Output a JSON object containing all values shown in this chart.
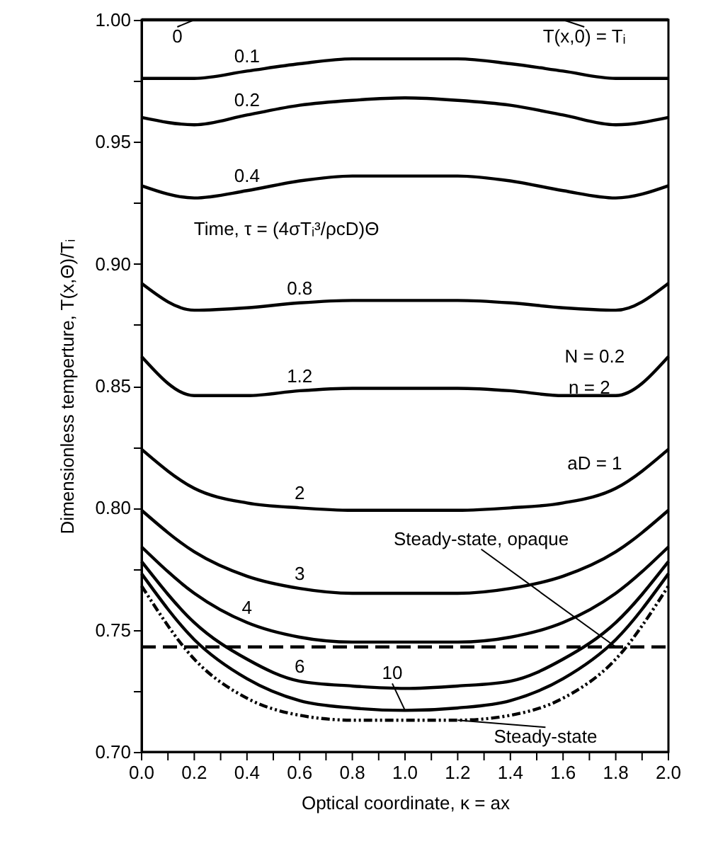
{
  "chart_data": {
    "type": "line",
    "xlabel": "Optical coordinate, κ = ax",
    "ylabel": "Dimensionless temperture, T(x,Θ)/Tᵢ",
    "x": [
      0.0,
      0.2,
      0.4,
      0.6,
      0.8,
      1.0,
      1.2,
      1.4,
      1.6,
      1.8,
      2.0
    ],
    "series": [
      {
        "color": "#000000",
        "line_style": "solid",
        "values": [
          1.0,
          1.0,
          1.0,
          1.0,
          1.0,
          1.0,
          1.0,
          1.0,
          1.0,
          1.0,
          1.0
        ]
      },
      {
        "color": "#000000",
        "line_style": "solid",
        "values": [
          0.976,
          0.976,
          0.979,
          0.982,
          0.984,
          0.984,
          0.984,
          0.982,
          0.979,
          0.976,
          0.976
        ]
      },
      {
        "color": "#000000",
        "line_style": "solid",
        "values": [
          0.96,
          0.957,
          0.961,
          0.965,
          0.967,
          0.968,
          0.967,
          0.965,
          0.961,
          0.957,
          0.96
        ]
      },
      {
        "color": "#000000",
        "line_style": "solid",
        "values": [
          0.932,
          0.927,
          0.93,
          0.934,
          0.936,
          0.936,
          0.936,
          0.934,
          0.93,
          0.927,
          0.932
        ]
      },
      {
        "color": "#000000",
        "line_style": "solid",
        "values": [
          0.892,
          0.881,
          0.882,
          0.884,
          0.885,
          0.885,
          0.885,
          0.884,
          0.882,
          0.881,
          0.892
        ]
      },
      {
        "color": "#000000",
        "line_style": "solid",
        "values": [
          0.862,
          0.846,
          0.846,
          0.848,
          0.849,
          0.849,
          0.849,
          0.848,
          0.846,
          0.846,
          0.862
        ]
      },
      {
        "color": "#000000",
        "line_style": "solid",
        "values": [
          0.824,
          0.808,
          0.802,
          0.8,
          0.799,
          0.799,
          0.799,
          0.8,
          0.802,
          0.808,
          0.824
        ]
      },
      {
        "color": "#000000",
        "line_style": "solid",
        "values": [
          0.799,
          0.782,
          0.772,
          0.767,
          0.765,
          0.765,
          0.765,
          0.767,
          0.772,
          0.782,
          0.799
        ]
      },
      {
        "color": "#000000",
        "line_style": "solid",
        "values": [
          0.784,
          0.765,
          0.753,
          0.747,
          0.745,
          0.745,
          0.745,
          0.747,
          0.753,
          0.765,
          0.784
        ]
      },
      {
        "color": "#000000",
        "line_style": "solid",
        "values": [
          0.778,
          0.753,
          0.738,
          0.729,
          0.727,
          0.726,
          0.727,
          0.729,
          0.738,
          0.753,
          0.778
        ]
      },
      {
        "color": "#000000",
        "line_style": "solid",
        "values": [
          0.773,
          0.746,
          0.73,
          0.721,
          0.718,
          0.717,
          0.718,
          0.721,
          0.73,
          0.746,
          0.773
        ]
      },
      {
        "color": "#000000",
        "line_style": "dotted",
        "values": [
          0.768,
          0.738,
          0.722,
          0.715,
          0.713,
          0.713,
          0.713,
          0.715,
          0.722,
          0.738,
          0.768
        ]
      },
      {
        "color": "#000000",
        "line_style": "dashed",
        "values": [
          0.743,
          0.743,
          0.743,
          0.743,
          0.743,
          0.743,
          0.743,
          0.743,
          0.743,
          0.743,
          0.743
        ]
      }
    ],
    "xlim": [
      0.0,
      2.0
    ],
    "xticks": [
      {
        "value": 0.0,
        "label": "0.0"
      },
      {
        "value": 0.1,
        "label": null
      },
      0.2,
      {
        "value": 0.3,
        "label": null
      },
      0.4,
      {
        "value": 0.5,
        "label": null
      },
      0.6,
      {
        "value": 0.7,
        "label": null
      },
      0.8,
      {
        "value": 0.9,
        "label": null
      },
      {
        "value": 1.0,
        "label": "1.0"
      },
      {
        "value": 1.1,
        "label": null
      },
      1.2,
      {
        "value": 1.3,
        "label": null
      },
      1.4,
      {
        "value": 1.5,
        "label": null
      },
      1.6,
      {
        "value": 1.7,
        "label": null
      },
      1.8,
      {
        "value": 1.9,
        "label": null
      },
      {
        "value": 2.0,
        "label": "2.0"
      }
    ],
    "ylim": [
      0.7,
      1.0
    ],
    "yticks": [
      {
        "value": 0.7,
        "label": "0.70"
      },
      {
        "value": 0.725,
        "label": null
      },
      0.75,
      {
        "value": 0.775,
        "label": null
      },
      {
        "value": 0.8,
        "label": "0.80"
      },
      {
        "value": 0.825,
        "label": null
      },
      0.85,
      {
        "value": 0.875,
        "label": null
      },
      {
        "value": 0.9,
        "label": "0.90"
      },
      {
        "value": 0.925,
        "label": null
      },
      0.95,
      {
        "value": 0.975,
        "label": null
      },
      {
        "value": 1.0,
        "label": "1.00"
      }
    ],
    "grid": false,
    "marker": "none",
    "annotations": [
      {
        "text": "0",
        "x": 0.2,
        "y": 1.0
      },
      {
        "text": "0.1",
        "x": 0.4,
        "y": 0.979
      },
      {
        "text": "0.2",
        "x": 0.4,
        "y": 0.961
      },
      {
        "text": "0.4",
        "x": 0.4,
        "y": 0.93
      },
      "Time, τ = (4σTᵢ³/ρcD)Θ",
      {
        "text": "0.8",
        "x": 0.6,
        "y": 0.884
      },
      {
        "text": "1.2",
        "x": 0.6,
        "y": 0.848
      },
      "N = 0.2",
      "n = 2",
      "aD = 1",
      {
        "text": "2",
        "x": 0.6,
        "y": 0.8
      },
      {
        "text": "Steady-state, opaque",
        "x": 1.8,
        "y": 0.743
      },
      {
        "text": "3",
        "x": 0.6,
        "y": 0.767
      },
      {
        "text": "4",
        "x": 0.4,
        "y": 0.753
      },
      {
        "text": "6",
        "x": 0.6,
        "y": 0.729
      },
      {
        "text": "10",
        "x": 1.0,
        "y": 0.717
      },
      {
        "text": "Steady-state",
        "x": 1.2,
        "y": 0.713
      },
      {
        "text": "T(x,0) = Tᵢ",
        "x": 1.6,
        "y": 1.0
      }
    ]
  }
}
